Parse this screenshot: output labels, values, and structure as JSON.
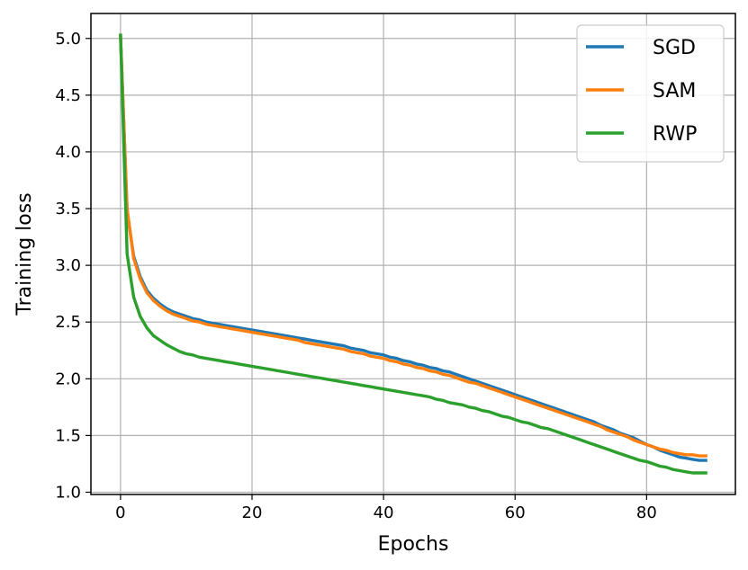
{
  "chart_data": {
    "type": "line",
    "title": "",
    "xlabel": "Epochs",
    "ylabel": "Training loss",
    "xlim": [
      -4.5,
      93.5
    ],
    "ylim": [
      0.98,
      5.22
    ],
    "xticks": [
      0,
      20,
      40,
      60,
      80
    ],
    "yticks": [
      1.0,
      1.5,
      2.0,
      2.5,
      3.0,
      3.5,
      4.0,
      4.5,
      5.0
    ],
    "xtick_labels": [
      "0",
      "20",
      "40",
      "60",
      "80"
    ],
    "ytick_labels": [
      "1.0",
      "1.5",
      "2.0",
      "2.5",
      "3.0",
      "3.5",
      "4.0",
      "4.5",
      "5.0"
    ],
    "grid": true,
    "legend_position": "top-right",
    "x": [
      0,
      1,
      2,
      3,
      4,
      5,
      6,
      7,
      8,
      9,
      10,
      11,
      12,
      13,
      14,
      15,
      16,
      17,
      18,
      19,
      20,
      21,
      22,
      23,
      24,
      25,
      26,
      27,
      28,
      29,
      30,
      31,
      32,
      33,
      34,
      35,
      36,
      37,
      38,
      39,
      40,
      41,
      42,
      43,
      44,
      45,
      46,
      47,
      48,
      49,
      50,
      51,
      52,
      53,
      54,
      55,
      56,
      57,
      58,
      59,
      60,
      61,
      62,
      63,
      64,
      65,
      66,
      67,
      68,
      69,
      70,
      71,
      72,
      73,
      74,
      75,
      76,
      77,
      78,
      79,
      80,
      81,
      82,
      83,
      84,
      85,
      86,
      87,
      88,
      89
    ],
    "series": [
      {
        "name": "SGD",
        "color": "#1f77b4",
        "values": [
          5.02,
          3.48,
          3.08,
          2.9,
          2.78,
          2.71,
          2.66,
          2.62,
          2.59,
          2.57,
          2.55,
          2.53,
          2.52,
          2.5,
          2.49,
          2.48,
          2.47,
          2.46,
          2.45,
          2.44,
          2.43,
          2.42,
          2.41,
          2.4,
          2.39,
          2.38,
          2.37,
          2.36,
          2.35,
          2.34,
          2.33,
          2.32,
          2.31,
          2.3,
          2.29,
          2.27,
          2.26,
          2.25,
          2.23,
          2.22,
          2.21,
          2.19,
          2.18,
          2.16,
          2.15,
          2.13,
          2.12,
          2.1,
          2.09,
          2.07,
          2.06,
          2.04,
          2.02,
          2.0,
          1.98,
          1.96,
          1.94,
          1.92,
          1.9,
          1.88,
          1.86,
          1.84,
          1.82,
          1.8,
          1.78,
          1.76,
          1.74,
          1.72,
          1.7,
          1.68,
          1.66,
          1.64,
          1.62,
          1.59,
          1.57,
          1.55,
          1.52,
          1.5,
          1.48,
          1.45,
          1.42,
          1.4,
          1.37,
          1.35,
          1.33,
          1.31,
          1.3,
          1.29,
          1.28,
          1.28
        ]
      },
      {
        "name": "SAM",
        "color": "#ff7f0e",
        "values": [
          5.02,
          3.5,
          3.06,
          2.88,
          2.76,
          2.69,
          2.64,
          2.6,
          2.57,
          2.55,
          2.53,
          2.51,
          2.5,
          2.48,
          2.47,
          2.46,
          2.45,
          2.44,
          2.43,
          2.42,
          2.41,
          2.4,
          2.39,
          2.38,
          2.37,
          2.36,
          2.35,
          2.34,
          2.32,
          2.31,
          2.3,
          2.29,
          2.28,
          2.27,
          2.26,
          2.24,
          2.23,
          2.22,
          2.2,
          2.19,
          2.18,
          2.16,
          2.15,
          2.13,
          2.12,
          2.1,
          2.09,
          2.07,
          2.06,
          2.04,
          2.03,
          2.01,
          1.99,
          1.97,
          1.96,
          1.94,
          1.92,
          1.9,
          1.88,
          1.86,
          1.84,
          1.82,
          1.8,
          1.78,
          1.76,
          1.74,
          1.72,
          1.7,
          1.68,
          1.66,
          1.64,
          1.62,
          1.6,
          1.58,
          1.55,
          1.53,
          1.51,
          1.49,
          1.46,
          1.44,
          1.42,
          1.4,
          1.38,
          1.37,
          1.35,
          1.34,
          1.33,
          1.33,
          1.32,
          1.32
        ]
      },
      {
        "name": "RWP",
        "color": "#2ca02c",
        "values": [
          5.03,
          3.1,
          2.72,
          2.55,
          2.45,
          2.38,
          2.34,
          2.3,
          2.27,
          2.24,
          2.22,
          2.21,
          2.19,
          2.18,
          2.17,
          2.16,
          2.15,
          2.14,
          2.13,
          2.12,
          2.11,
          2.1,
          2.09,
          2.08,
          2.07,
          2.06,
          2.05,
          2.04,
          2.03,
          2.02,
          2.01,
          2.0,
          1.99,
          1.98,
          1.97,
          1.96,
          1.95,
          1.94,
          1.93,
          1.92,
          1.91,
          1.9,
          1.89,
          1.88,
          1.87,
          1.86,
          1.85,
          1.84,
          1.82,
          1.81,
          1.79,
          1.78,
          1.77,
          1.75,
          1.74,
          1.72,
          1.71,
          1.69,
          1.67,
          1.66,
          1.64,
          1.62,
          1.61,
          1.59,
          1.57,
          1.56,
          1.54,
          1.52,
          1.5,
          1.48,
          1.46,
          1.44,
          1.42,
          1.4,
          1.38,
          1.36,
          1.34,
          1.32,
          1.3,
          1.28,
          1.27,
          1.25,
          1.23,
          1.22,
          1.2,
          1.19,
          1.18,
          1.17,
          1.17,
          1.17
        ]
      }
    ]
  }
}
